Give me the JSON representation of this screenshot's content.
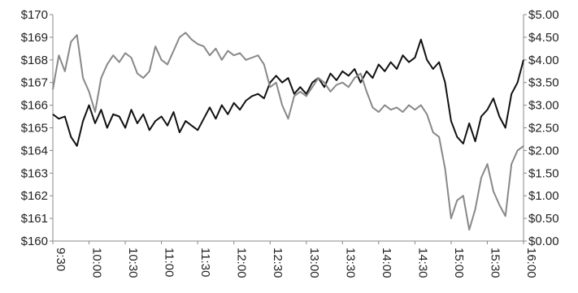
{
  "chart_data": {
    "type": "line",
    "title": "",
    "xlabel": "",
    "ylabel": "",
    "grid": false,
    "x_ticks": [
      "9:30",
      "10:00",
      "10:30",
      "11:00",
      "11:30",
      "12:00",
      "12:30",
      "13:00",
      "13:30",
      "14:00",
      "14:30",
      "15:00",
      "15:30",
      "16:00"
    ],
    "y_left": {
      "ylim": [
        160,
        170
      ],
      "ticks": [
        "$160",
        "$161",
        "$162",
        "$163",
        "$164",
        "$165",
        "$166",
        "$167",
        "$168",
        "$169",
        "$170"
      ]
    },
    "y_right": {
      "ylim": [
        0,
        5
      ],
      "ticks": [
        "$0.00",
        "$0.50",
        "$1.00",
        "$1.50",
        "$2.00",
        "$2.50",
        "$3.00",
        "$3.50",
        "$4.00",
        "$4.50",
        "$5.00"
      ]
    },
    "series": [
      {
        "axis": "left",
        "color": "#111111",
        "points": [
          [
            "9:30",
            165.6
          ],
          [
            "9:35",
            165.4
          ],
          [
            "9:40",
            165.5
          ],
          [
            "9:45",
            164.6
          ],
          [
            "9:50",
            164.2
          ],
          [
            "9:55",
            165.3
          ],
          [
            "10:00",
            166.0
          ],
          [
            "10:05",
            165.2
          ],
          [
            "10:10",
            165.8
          ],
          [
            "10:15",
            165.0
          ],
          [
            "10:20",
            165.6
          ],
          [
            "10:25",
            165.5
          ],
          [
            "10:30",
            165.0
          ],
          [
            "10:35",
            165.8
          ],
          [
            "10:40",
            165.2
          ],
          [
            "10:45",
            165.6
          ],
          [
            "10:50",
            164.9
          ],
          [
            "10:55",
            165.3
          ],
          [
            "11:00",
            165.5
          ],
          [
            "11:05",
            165.1
          ],
          [
            "11:10",
            165.7
          ],
          [
            "11:15",
            164.8
          ],
          [
            "11:20",
            165.3
          ],
          [
            "11:25",
            165.1
          ],
          [
            "11:30",
            164.9
          ],
          [
            "11:35",
            165.4
          ],
          [
            "11:40",
            165.9
          ],
          [
            "11:45",
            165.4
          ],
          [
            "11:50",
            166.0
          ],
          [
            "11:55",
            165.6
          ],
          [
            "12:00",
            166.1
          ],
          [
            "12:05",
            165.8
          ],
          [
            "12:10",
            166.2
          ],
          [
            "12:15",
            166.4
          ],
          [
            "12:20",
            166.5
          ],
          [
            "12:25",
            166.3
          ],
          [
            "12:30",
            167.0
          ],
          [
            "12:35",
            167.3
          ],
          [
            "12:40",
            167.0
          ],
          [
            "12:45",
            167.2
          ],
          [
            "12:50",
            166.5
          ],
          [
            "12:55",
            166.8
          ],
          [
            "13:00",
            166.5
          ],
          [
            "13:05",
            167.0
          ],
          [
            "13:10",
            167.2
          ],
          [
            "13:15",
            166.8
          ],
          [
            "13:20",
            167.4
          ],
          [
            "13:25",
            167.1
          ],
          [
            "13:30",
            167.5
          ],
          [
            "13:35",
            167.3
          ],
          [
            "13:40",
            167.6
          ],
          [
            "13:45",
            167.0
          ],
          [
            "13:50",
            167.5
          ],
          [
            "13:55",
            167.2
          ],
          [
            "14:00",
            167.8
          ],
          [
            "14:05",
            167.5
          ],
          [
            "14:10",
            167.9
          ],
          [
            "14:15",
            167.6
          ],
          [
            "14:20",
            168.2
          ],
          [
            "14:25",
            167.9
          ],
          [
            "14:30",
            168.1
          ],
          [
            "14:35",
            168.9
          ],
          [
            "14:40",
            168.0
          ],
          [
            "14:45",
            167.6
          ],
          [
            "14:50",
            167.9
          ],
          [
            "14:55",
            167.0
          ],
          [
            "15:00",
            165.3
          ],
          [
            "15:05",
            164.6
          ],
          [
            "15:10",
            164.3
          ],
          [
            "15:15",
            165.2
          ],
          [
            "15:20",
            164.4
          ],
          [
            "15:25",
            165.5
          ],
          [
            "15:30",
            165.8
          ],
          [
            "15:35",
            166.3
          ],
          [
            "15:40",
            165.5
          ],
          [
            "15:45",
            165.0
          ],
          [
            "15:50",
            166.5
          ],
          [
            "15:55",
            167.0
          ],
          [
            "16:00",
            168.0
          ]
        ]
      },
      {
        "axis": "right",
        "color": "#888888",
        "points": [
          [
            "9:30",
            3.35
          ],
          [
            "9:35",
            4.1
          ],
          [
            "9:40",
            3.75
          ],
          [
            "9:45",
            4.4
          ],
          [
            "9:50",
            4.55
          ],
          [
            "9:55",
            3.6
          ],
          [
            "10:00",
            3.3
          ],
          [
            "10:05",
            2.85
          ],
          [
            "10:10",
            3.6
          ],
          [
            "10:15",
            3.9
          ],
          [
            "10:20",
            4.1
          ],
          [
            "10:25",
            3.95
          ],
          [
            "10:30",
            4.15
          ],
          [
            "10:35",
            4.05
          ],
          [
            "10:40",
            3.7
          ],
          [
            "10:45",
            3.6
          ],
          [
            "10:50",
            3.75
          ],
          [
            "10:55",
            4.3
          ],
          [
            "11:00",
            4.0
          ],
          [
            "11:05",
            3.9
          ],
          [
            "11:10",
            4.2
          ],
          [
            "11:15",
            4.5
          ],
          [
            "11:20",
            4.6
          ],
          [
            "11:25",
            4.45
          ],
          [
            "11:30",
            4.35
          ],
          [
            "11:35",
            4.3
          ],
          [
            "11:40",
            4.1
          ],
          [
            "11:45",
            4.25
          ],
          [
            "11:50",
            4.0
          ],
          [
            "11:55",
            4.2
          ],
          [
            "12:00",
            4.1
          ],
          [
            "12:05",
            4.15
          ],
          [
            "12:10",
            4.0
          ],
          [
            "12:15",
            4.05
          ],
          [
            "12:20",
            4.1
          ],
          [
            "12:25",
            3.9
          ],
          [
            "12:30",
            3.4
          ],
          [
            "12:35",
            3.5
          ],
          [
            "12:40",
            3.0
          ],
          [
            "12:45",
            2.7
          ],
          [
            "12:50",
            3.2
          ],
          [
            "12:55",
            3.3
          ],
          [
            "13:00",
            3.2
          ],
          [
            "13:05",
            3.4
          ],
          [
            "13:10",
            3.6
          ],
          [
            "13:15",
            3.5
          ],
          [
            "13:20",
            3.3
          ],
          [
            "13:25",
            3.45
          ],
          [
            "13:30",
            3.5
          ],
          [
            "13:35",
            3.4
          ],
          [
            "13:40",
            3.6
          ],
          [
            "13:45",
            3.7
          ],
          [
            "13:50",
            3.3
          ],
          [
            "13:55",
            2.95
          ],
          [
            "14:00",
            2.85
          ],
          [
            "14:05",
            3.0
          ],
          [
            "14:10",
            2.9
          ],
          [
            "14:15",
            2.95
          ],
          [
            "14:20",
            2.85
          ],
          [
            "14:25",
            3.0
          ],
          [
            "14:30",
            2.9
          ],
          [
            "14:35",
            3.0
          ],
          [
            "14:40",
            2.8
          ],
          [
            "14:45",
            2.4
          ],
          [
            "14:50",
            2.3
          ],
          [
            "14:55",
            1.6
          ],
          [
            "15:00",
            0.5
          ],
          [
            "15:05",
            0.9
          ],
          [
            "15:10",
            1.0
          ],
          [
            "15:15",
            0.25
          ],
          [
            "15:20",
            0.7
          ],
          [
            "15:25",
            1.4
          ],
          [
            "15:30",
            1.7
          ],
          [
            "15:35",
            1.1
          ],
          [
            "15:40",
            0.8
          ],
          [
            "15:45",
            0.55
          ],
          [
            "15:50",
            1.7
          ],
          [
            "15:55",
            2.0
          ],
          [
            "16:00",
            2.1
          ]
        ]
      }
    ]
  }
}
